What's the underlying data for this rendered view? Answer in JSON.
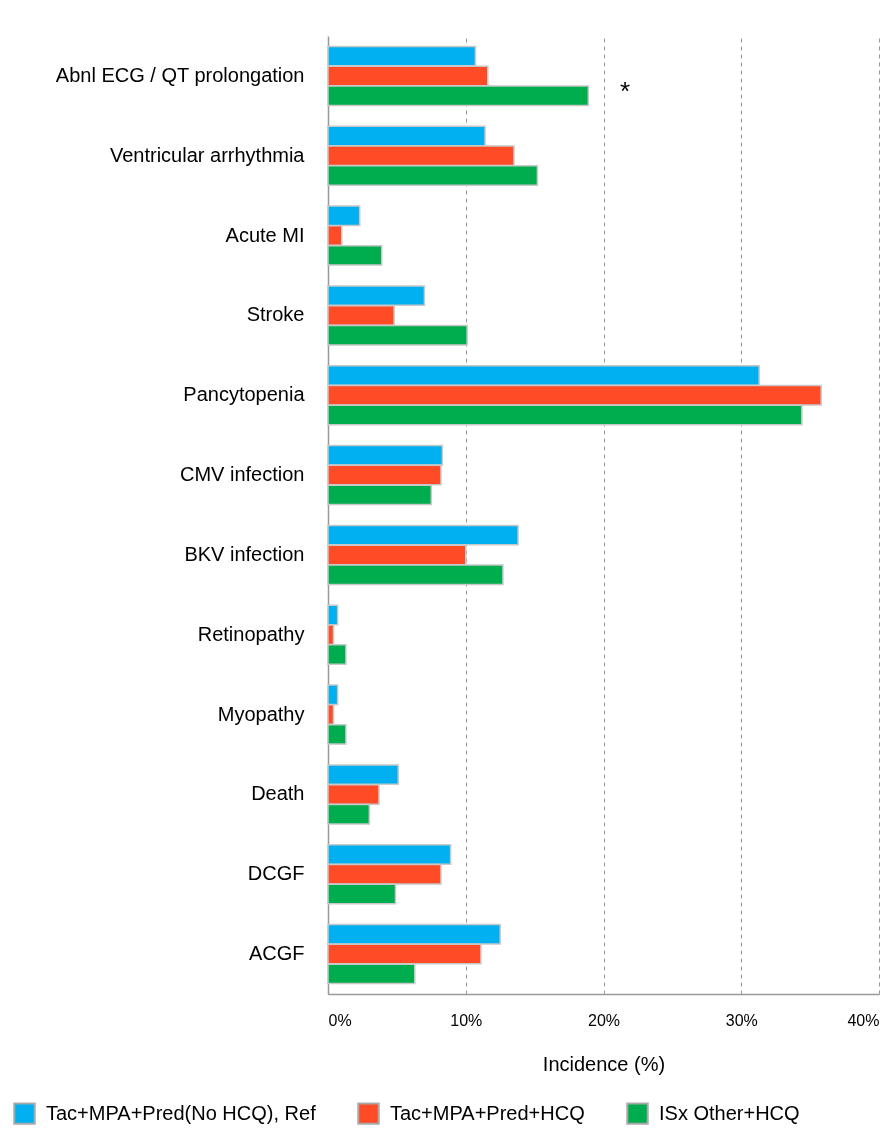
{
  "chart_data": {
    "type": "bar",
    "orientation": "horizontal",
    "xlabel": "Incidence (%)",
    "categories": [
      "Abnl ECG / QT prolongation",
      "Ventricular arrhythmia",
      "Acute MI",
      "Stroke",
      "Pancytopenia",
      "CMV infection",
      "BKV infection",
      "Retinopathy",
      "Myopathy",
      "Death",
      "DCGF",
      "ACGF"
    ],
    "series": [
      {
        "name": "Tac+MPA+Pred(No HCQ), Ref",
        "color": "#00b0f0",
        "values": [
          10.7,
          11.4,
          2.3,
          7.0,
          31.3,
          8.3,
          13.8,
          0.7,
          0.7,
          5.1,
          8.9,
          12.5
        ]
      },
      {
        "name": "Tac+MPA+Pred+HCQ",
        "color": "#ff4b26",
        "values": [
          11.6,
          13.5,
          1.0,
          4.8,
          35.8,
          8.2,
          10.0,
          0.4,
          0.4,
          3.7,
          8.2,
          11.1
        ]
      },
      {
        "name": "ISx Other+HCQ",
        "color": "#00ad4e",
        "values": [
          18.9,
          15.2,
          3.9,
          10.1,
          34.4,
          7.5,
          12.7,
          1.3,
          1.3,
          3.0,
          4.9,
          6.3
        ]
      }
    ],
    "xlim": [
      0,
      40
    ],
    "xticks": [
      {
        "value": 0,
        "label": "0%"
      },
      {
        "value": 10,
        "label": "10%"
      },
      {
        "value": 20,
        "label": "20%"
      },
      {
        "value": 30,
        "label": "30%"
      },
      {
        "value": 40,
        "label": "40%"
      }
    ],
    "grid": "x",
    "legend": "bottom",
    "annotations": [
      "*"
    ]
  }
}
